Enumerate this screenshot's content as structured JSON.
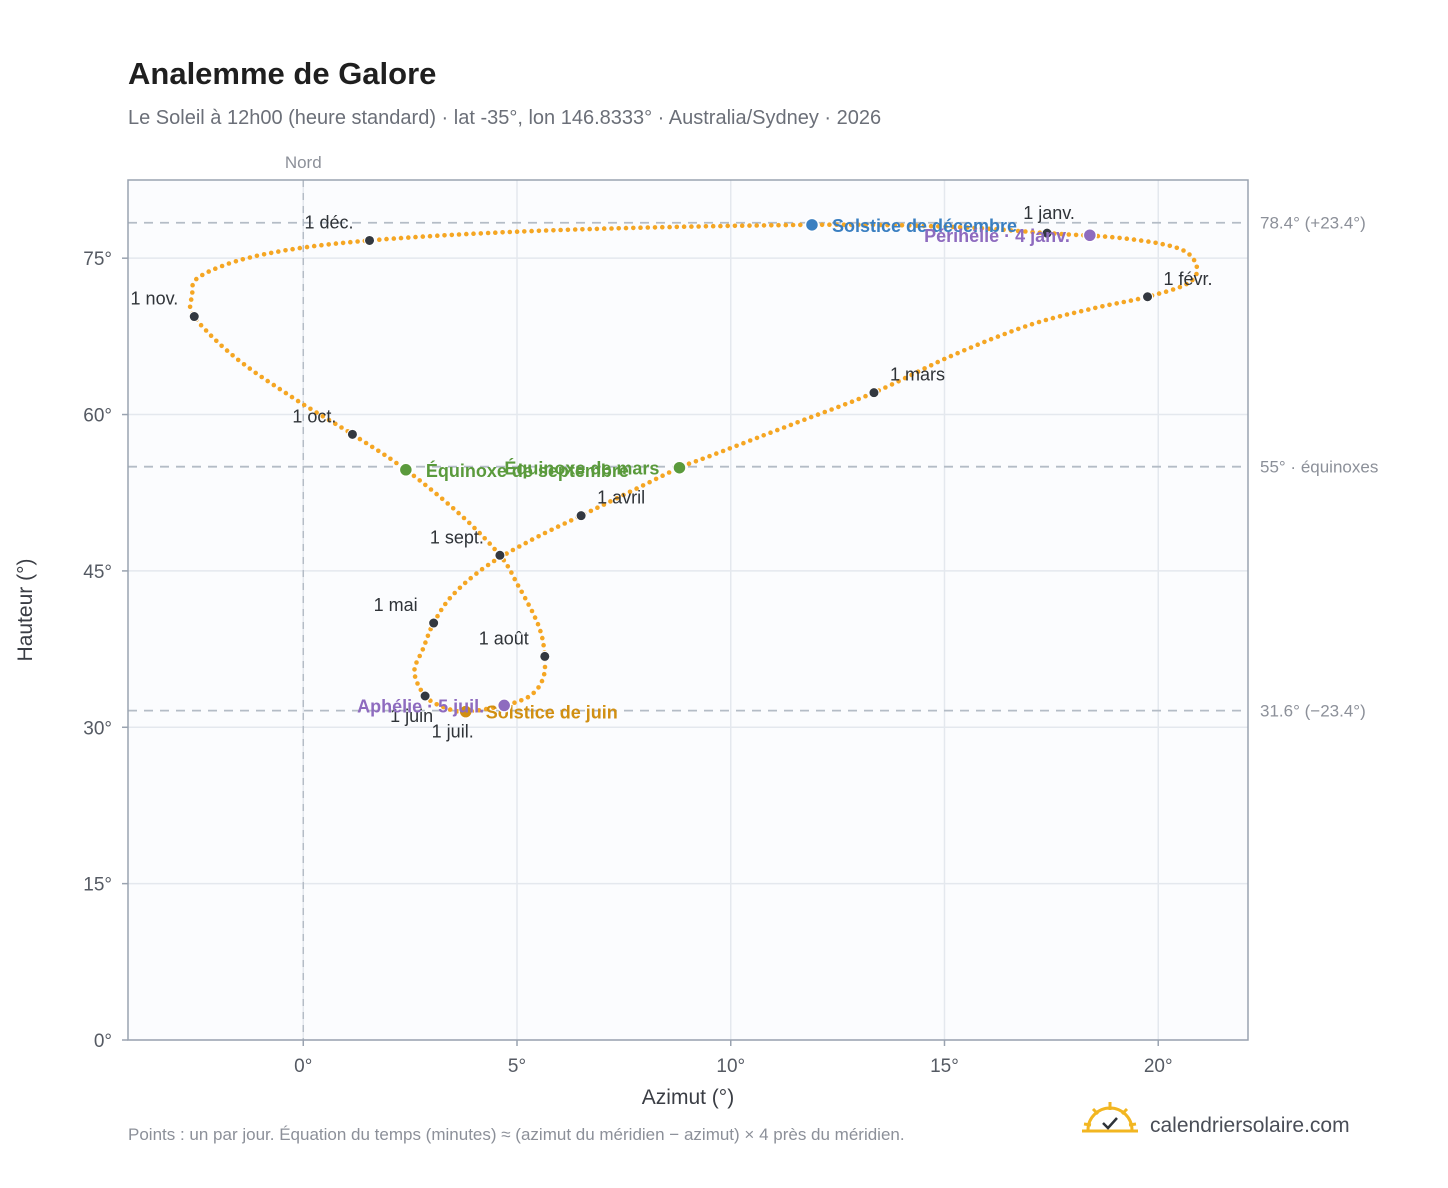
{
  "title": "Analemme de Galore",
  "subtitle": "Le Soleil à 12h00 (heure standard) · lat -35°, lon 146.8333° · Australia/Sydney · 2026",
  "footnote": "Points : un par jour. Équation du temps (minutes) ≈ (azimut du méridien − azimut) × 4 près du méridien.",
  "brand": {
    "text": "calendriersolaire.com",
    "icon": "sun-check-logo-icon"
  },
  "chart_data": {
    "type": "scatter",
    "xlabel": "Azimut (°)",
    "ylabel": "Hauteur (°)",
    "xlim": [
      -4.1,
      22.1
    ],
    "ylim": [
      0,
      82.5
    ],
    "x_ticks": [
      {
        "value": 0,
        "label": "0°"
      },
      {
        "value": 5,
        "label": "5°"
      },
      {
        "value": 10,
        "label": "10°"
      },
      {
        "value": 15,
        "label": "15°"
      },
      {
        "value": 20,
        "label": "20°"
      }
    ],
    "y_ticks": [
      {
        "value": 0,
        "label": "0°"
      },
      {
        "value": 15,
        "label": "15°"
      },
      {
        "value": 30,
        "label": "30°"
      },
      {
        "value": 45,
        "label": "45°"
      },
      {
        "value": 60,
        "label": "60°"
      },
      {
        "value": 75,
        "label": "75°"
      }
    ],
    "grid": true,
    "colors": {
      "path": "#f5a623",
      "month": "#333840",
      "solstice_dec": "#3a7fc1",
      "solstice_jun": "#d18f12",
      "equinox": "#5a9a3c",
      "apsis": "#8e6bbf",
      "reference": "#b4bcc6"
    },
    "north_line": {
      "x": 0,
      "label": "Nord"
    },
    "reference_lines": [
      {
        "y": 78.4,
        "label": "78.4° (+23.4°)"
      },
      {
        "y": 55,
        "label": "55° · équinoxes"
      },
      {
        "y": 31.6,
        "label": "31.6° (−23.4°)"
      }
    ],
    "month_markers": [
      {
        "label": "1 janv.",
        "x": 17.4,
        "y": 77.4,
        "label_pos": "above"
      },
      {
        "label": "1 févr.",
        "x": 19.75,
        "y": 71.3,
        "label_pos": "right"
      },
      {
        "label": "1 mars",
        "x": 13.35,
        "y": 62.1,
        "label_pos": "right"
      },
      {
        "label": "1 avril",
        "x": 6.5,
        "y": 50.3,
        "label_pos": "right"
      },
      {
        "label": "1 mai",
        "x": 3.05,
        "y": 40.0,
        "label_pos": "left"
      },
      {
        "label": "1 juin",
        "x": 2.85,
        "y": 33.0,
        "label_pos": "below-left"
      },
      {
        "label": "1 juil.",
        "x": 3.8,
        "y": 31.5,
        "label_pos": "below-left"
      },
      {
        "label": "1 août",
        "x": 5.65,
        "y": 36.8,
        "label_pos": "above-left"
      },
      {
        "label": "1 sept.",
        "x": 4.6,
        "y": 46.5,
        "label_pos": "left"
      },
      {
        "label": "1 oct.",
        "x": 1.15,
        "y": 58.1,
        "label_pos": "left"
      },
      {
        "label": "1 nov.",
        "x": -2.55,
        "y": 69.4,
        "label_pos": "left"
      },
      {
        "label": "1 déc.",
        "x": 1.55,
        "y": 76.7,
        "label_pos": "above-left"
      }
    ],
    "events": [
      {
        "label": "Solstice de décembre",
        "x": 11.9,
        "y": 78.2,
        "color": "#3a7fc1",
        "label_pos": "right"
      },
      {
        "label": "Périhélie · 4 janv.",
        "x": 18.4,
        "y": 77.2,
        "color": "#8e6bbf",
        "label_pos": "left"
      },
      {
        "label": "Équinoxe de mars",
        "x": 8.8,
        "y": 54.9,
        "color": "#5a9a3c",
        "label_pos": "left"
      },
      {
        "label": "Équinoxe de septembre",
        "x": 2.4,
        "y": 54.7,
        "color": "#5a9a3c",
        "label_pos": "right"
      },
      {
        "label": "Solstice de juin",
        "x": 3.8,
        "y": 31.5,
        "color": "#d18f12",
        "label_pos": "right"
      },
      {
        "label": "Aphélie · 5 juil.",
        "x": 4.7,
        "y": 32.1,
        "color": "#8e6bbf",
        "label_pos": "left"
      }
    ],
    "series": [
      {
        "points": [
          [
            17.4,
            77.4
          ],
          [
            19.2,
            76.9
          ],
          [
            20.5,
            75.9
          ],
          [
            20.9,
            74.2
          ],
          [
            20.7,
            72.6
          ],
          [
            19.75,
            71.3
          ],
          [
            18.5,
            70.2
          ],
          [
            17.0,
            68.6
          ],
          [
            15.2,
            65.7
          ],
          [
            13.35,
            62.1
          ],
          [
            11.4,
            59.0
          ],
          [
            9.5,
            56.0
          ],
          [
            8.8,
            54.9
          ],
          [
            7.8,
            52.9
          ],
          [
            6.5,
            50.3
          ],
          [
            5.4,
            48.1
          ],
          [
            4.3,
            45.5
          ],
          [
            3.5,
            42.7
          ],
          [
            3.05,
            40.0
          ],
          [
            2.8,
            37.5
          ],
          [
            2.6,
            35.3
          ],
          [
            2.85,
            33.0
          ],
          [
            3.3,
            31.9
          ],
          [
            3.8,
            31.5
          ],
          [
            4.7,
            32.1
          ],
          [
            5.3,
            33.0
          ],
          [
            5.6,
            34.6
          ],
          [
            5.65,
            36.8
          ],
          [
            5.5,
            39.8
          ],
          [
            5.0,
            43.8
          ],
          [
            4.6,
            46.5
          ],
          [
            3.7,
            50.3
          ],
          [
            2.4,
            54.7
          ],
          [
            1.15,
            58.1
          ],
          [
            -0.2,
            61.5
          ],
          [
            -1.6,
            65.5
          ],
          [
            -2.55,
            69.4
          ],
          [
            -2.6,
            71.4
          ],
          [
            -2.4,
            73.3
          ],
          [
            -1.0,
            75.3
          ],
          [
            1.55,
            76.7
          ],
          [
            6.0,
            77.7
          ],
          [
            11.9,
            78.2
          ],
          [
            15.2,
            78.0
          ],
          [
            17.4,
            77.4
          ]
        ]
      }
    ]
  }
}
